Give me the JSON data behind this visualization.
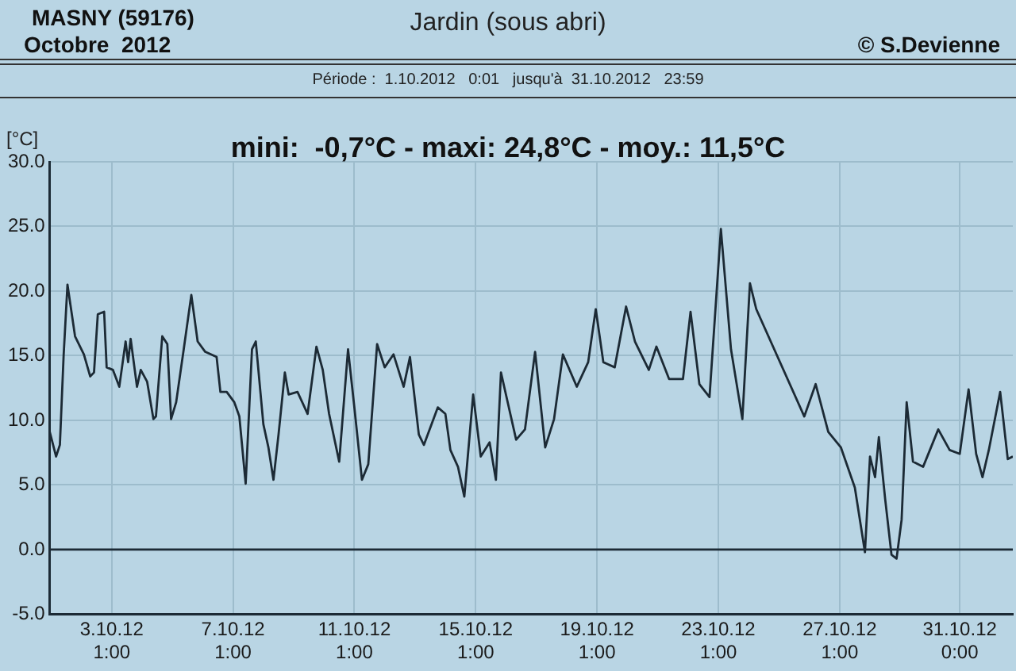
{
  "chart_data": {
    "type": "line",
    "title": "Jardin (sous abri)",
    "subtitle": "Période :  1.10.2012   0:01   jusqu'à  31.10.2012   23:59",
    "ylabel": "[°C]",
    "annotations": [
      "MASNY (59176)",
      "Octobre  2012",
      "© S.Devienne",
      "mini:  -0,7°C - maxi: 24,8°C - moy.: 11,5°C"
    ],
    "x": [
      "2012-10-01T00:00",
      "2012-10-01T05:00",
      "2012-10-01T08:00",
      "2012-10-01T11:00",
      "2012-10-01T14:00",
      "2012-10-01T20:00",
      "2012-10-02T03:00",
      "2012-10-02T08:00",
      "2012-10-02T11:00",
      "2012-10-02T14:00",
      "2012-10-02T19:00",
      "2012-10-02T21:00",
      "2012-10-03T02:00",
      "2012-10-03T07:00",
      "2012-10-03T12:00",
      "2012-10-03T14:00",
      "2012-10-03T16:00",
      "2012-10-03T21:00",
      "2012-10-04T00:00",
      "2012-10-04T05:00",
      "2012-10-04T10:00",
      "2012-10-04T12:00",
      "2012-10-04T17:00",
      "2012-10-04T21:00",
      "2012-10-05T00:00",
      "2012-10-05T04:00",
      "2012-10-05T10:00",
      "2012-10-05T16:00",
      "2012-10-05T21:00",
      "2012-10-06T03:00",
      "2012-10-06T12:00",
      "2012-10-06T15:00",
      "2012-10-06T20:00",
      "2012-10-07T02:00",
      "2012-10-07T06:00",
      "2012-10-07T11:00",
      "2012-10-07T16:00",
      "2012-10-07T19:00",
      "2012-10-08T01:00",
      "2012-10-08T05:00",
      "2012-10-08T09:00",
      "2012-10-08T13:00",
      "2012-10-08T18:00",
      "2012-10-08T21:00",
      "2012-10-09T04:00",
      "2012-10-09T12:00",
      "2012-10-09T19:00",
      "2012-10-10T00:00",
      "2012-10-10T05:00",
      "2012-10-10T13:00",
      "2012-10-10T20:00",
      "2012-10-11T01:00",
      "2012-10-11T07:00",
      "2012-10-11T12:00",
      "2012-10-11T19:00",
      "2012-10-12T01:00",
      "2012-10-12T08:00",
      "2012-10-12T16:00",
      "2012-10-12T21:00",
      "2012-10-13T04:00",
      "2012-10-13T08:00",
      "2012-10-13T19:00",
      "2012-10-14T01:00",
      "2012-10-14T05:00",
      "2012-10-14T11:00",
      "2012-10-14T16:00",
      "2012-10-14T23:00",
      "2012-10-15T05:00",
      "2012-10-15T12:00",
      "2012-10-15T17:00",
      "2012-10-15T21:00",
      "2012-10-16T09:00",
      "2012-10-16T16:00",
      "2012-10-17T00:00",
      "2012-10-17T08:00",
      "2012-10-17T15:00",
      "2012-10-17T22:00",
      "2012-10-18T09:00",
      "2012-10-18T18:00",
      "2012-10-19T00:00",
      "2012-10-19T06:00",
      "2012-10-19T15:00",
      "2012-10-20T00:00",
      "2012-10-20T07:00",
      "2012-10-20T18:00",
      "2012-10-21T00:00",
      "2012-10-21T10:00",
      "2012-10-21T21:00",
      "2012-10-22T03:00",
      "2012-10-22T10:00",
      "2012-10-22T18:00",
      "2012-10-23T03:00",
      "2012-10-23T11:00",
      "2012-10-23T20:00",
      "2012-10-24T02:00",
      "2012-10-24T07:00",
      "2012-10-25T21:00",
      "2012-10-26T06:00",
      "2012-10-26T16:00",
      "2012-10-27T02:00",
      "2012-10-27T13:00",
      "2012-10-27T21:00",
      "2012-10-28T01:00",
      "2012-10-28T05:00",
      "2012-10-28T08:00",
      "2012-10-28T13:00",
      "2012-10-28T18:00",
      "2012-10-28T22:00",
      "2012-10-29T02:00",
      "2012-10-29T06:00",
      "2012-10-29T11:00",
      "2012-10-29T19:00",
      "2012-10-30T07:00",
      "2012-10-30T16:00",
      "2012-10-31T00:00",
      "2012-10-31T07:00",
      "2012-10-31T13:00",
      "2012-10-31T18:00",
      "2012-10-31T23:00",
      "2012-11-01T08:00",
      "2012-11-01T14:00",
      "2012-11-01T18:00"
    ],
    "series": [
      {
        "color": "#1c2a35",
        "values": [
          9.1,
          7.2,
          8.1,
          15.1,
          20.5,
          16.5,
          15.1,
          13.4,
          13.7,
          18.2,
          18.4,
          14.1,
          13.9,
          12.6,
          16.1,
          14.5,
          16.3,
          12.6,
          13.9,
          13.0,
          10.1,
          10.3,
          16.5,
          15.9,
          10.1,
          11.4,
          15.5,
          19.7,
          16.1,
          15.3,
          14.9,
          12.2,
          12.2,
          11.4,
          10.3,
          5.1,
          15.5,
          16.1,
          9.7,
          7.9,
          5.4,
          8.9,
          13.7,
          12.0,
          12.2,
          10.5,
          15.7,
          13.9,
          10.5,
          6.8,
          15.5,
          11.0,
          5.4,
          6.6,
          15.9,
          14.1,
          15.1,
          12.6,
          14.9,
          8.9,
          8.1,
          11.0,
          10.5,
          7.7,
          6.4,
          4.1,
          12.0,
          7.2,
          8.3,
          5.4,
          13.7,
          8.5,
          9.3,
          15.3,
          7.9,
          10.1,
          15.1,
          12.6,
          14.5,
          18.6,
          14.5,
          14.1,
          18.8,
          16.1,
          13.9,
          15.7,
          13.2,
          13.2,
          18.4,
          12.8,
          11.8,
          24.8,
          15.5,
          10.1,
          20.6,
          18.6,
          10.3,
          12.8,
          9.1,
          7.9,
          4.8,
          -0.2,
          7.2,
          5.6,
          8.7,
          3.9,
          -0.4,
          -0.7,
          2.3,
          11.4,
          6.8,
          6.4,
          9.3,
          7.7,
          7.4,
          12.4,
          7.4,
          5.6,
          7.7,
          12.2,
          7.0,
          7.2
        ]
      }
    ],
    "xlim": [
      "2012-10-01T00:00",
      "2012-11-01T18:00"
    ],
    "xticks": [
      {
        "value": "2012-10-03T01:00",
        "label": "3.10.12 1:00"
      },
      {
        "value": "2012-10-07T01:00",
        "label": "7.10.12 1:00"
      },
      {
        "value": "2012-10-11T01:00",
        "label": "11.10.12 1:00"
      },
      {
        "value": "2012-10-15T01:00",
        "label": "15.10.12 1:00"
      },
      {
        "value": "2012-10-19T01:00",
        "label": "19.10.12 1:00"
      },
      {
        "value": "2012-10-23T01:00",
        "label": "23.10.12 1:00"
      },
      {
        "value": "2012-10-27T01:00",
        "label": "27.10.12 1:00"
      },
      {
        "value": "2012-10-31T00:00",
        "label": "31.10.12 0:00"
      }
    ],
    "ylim": [
      -5,
      30
    ],
    "yticks": [
      {
        "value": -5,
        "label": "-5.0"
      },
      {
        "value": 0,
        "label": "0.0"
      },
      {
        "value": 5,
        "label": "5.0"
      },
      {
        "value": 10,
        "label": "10.0"
      },
      {
        "value": 15,
        "label": "15.0"
      },
      {
        "value": 20,
        "label": "20.0"
      },
      {
        "value": 25,
        "label": "25.0"
      },
      {
        "value": 30,
        "label": "30.0"
      }
    ],
    "ref_lines": [
      {
        "axis": "y",
        "value": 0,
        "color": "#1c2a35"
      }
    ],
    "grid": true,
    "legend": false,
    "marker": "none",
    "line_style": "solid"
  }
}
